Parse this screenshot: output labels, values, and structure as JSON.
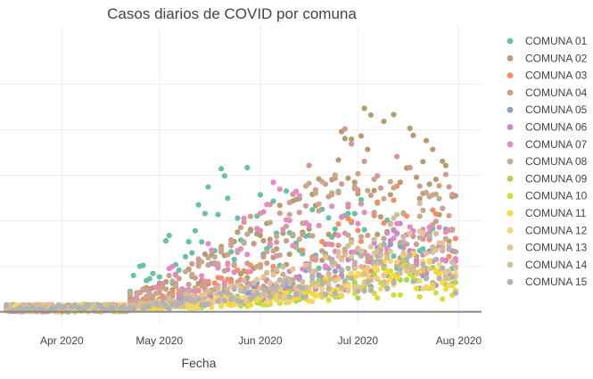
{
  "chart_data": {
    "type": "scatter",
    "title": "Casos diarios de COVID por comuna",
    "xlabel": "Fecha",
    "ylabel": "",
    "x_range": [
      "2020-03-13",
      "2020-08-08"
    ],
    "y_range": [
      -3,
      63
    ],
    "x_ticks": [
      {
        "date": "2020-04-01",
        "label": "Apr 2020"
      },
      {
        "date": "2020-05-01",
        "label": "May 2020"
      },
      {
        "date": "2020-06-01",
        "label": "Jun 2020"
      },
      {
        "date": "2020-07-01",
        "label": "Jul 2020"
      },
      {
        "date": "2020-08-01",
        "label": "Aug 2020"
      }
    ],
    "y_gridlines": [
      10,
      20,
      30,
      40,
      50
    ],
    "grid": true,
    "legend_position": "right",
    "date_start": "2020-03-15",
    "date_end": "2020-07-31",
    "series": [
      {
        "name": "COMUNA 01",
        "color": "#66c2a5",
        "peak": 30,
        "peak_date": "2020-05-20",
        "sparse": 0.55
      },
      {
        "name": "COMUNA 02",
        "color": "#b89c71",
        "peak": 44,
        "peak_date": "2020-07-05",
        "sparse": 0.7
      },
      {
        "name": "COMUNA 03",
        "color": "#fc8d62",
        "peak": 26,
        "peak_date": "2020-07-12",
        "sparse": 0.6
      },
      {
        "name": "COMUNA 04",
        "color": "#d39a8f",
        "peak": 40,
        "peak_date": "2020-06-28",
        "sparse": 0.7
      },
      {
        "name": "COMUNA 05",
        "color": "#8da0cb",
        "peak": 16,
        "peak_date": "2020-07-15",
        "sparse": 0.5
      },
      {
        "name": "COMUNA 06",
        "color": "#c98bc6",
        "peak": 18,
        "peak_date": "2020-07-15",
        "sparse": 0.5
      },
      {
        "name": "COMUNA 07",
        "color": "#e78ac3",
        "peak": 26,
        "peak_date": "2020-06-05",
        "sparse": 0.6
      },
      {
        "name": "COMUNA 08",
        "color": "#c5a98a",
        "peak": 33,
        "peak_date": "2020-06-25",
        "sparse": 0.65
      },
      {
        "name": "COMUNA 09",
        "color": "#a6d854",
        "peak": 11,
        "peak_date": "2020-07-15",
        "sparse": 0.4
      },
      {
        "name": "COMUNA 10",
        "color": "#d3dc3a",
        "peak": 10,
        "peak_date": "2020-07-15",
        "sparse": 0.4
      },
      {
        "name": "COMUNA 11",
        "color": "#ffd92f",
        "peak": 12,
        "peak_date": "2020-07-18",
        "sparse": 0.45
      },
      {
        "name": "COMUNA 12",
        "color": "#f1d573",
        "peak": 12,
        "peak_date": "2020-07-18",
        "sparse": 0.45
      },
      {
        "name": "COMUNA 13",
        "color": "#e5c494",
        "peak": 20,
        "peak_date": "2020-07-20",
        "sparse": 0.55
      },
      {
        "name": "COMUNA 14",
        "color": "#d2bc9a",
        "peak": 22,
        "peak_date": "2020-07-20",
        "sparse": 0.55
      },
      {
        "name": "COMUNA 15",
        "color": "#b3b3b3",
        "peak": 17,
        "peak_date": "2020-07-20",
        "sparse": 0.5
      }
    ]
  }
}
